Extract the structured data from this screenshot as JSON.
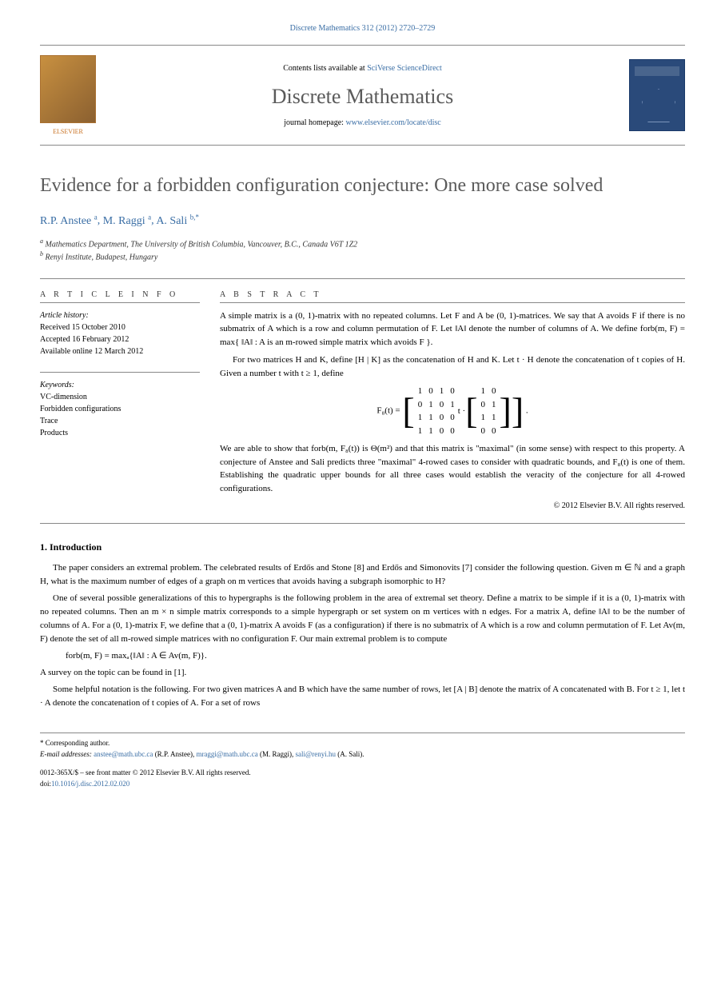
{
  "header": {
    "citation": "Discrete Mathematics 312 (2012) 2720–2729",
    "contents_prefix": "Contents lists available at ",
    "contents_link": "SciVerse ScienceDirect",
    "journal_name": "Discrete Mathematics",
    "homepage_prefix": "journal homepage: ",
    "homepage_link": "www.elsevier.com/locate/disc",
    "elsevier_label": "ELSEVIER"
  },
  "title": "Evidence for a forbidden configuration conjecture: One more case solved",
  "authors_html": "R.P. Anstee",
  "authors": [
    {
      "name": "R.P. Anstee",
      "sup": "a"
    },
    {
      "name": "M. Raggi",
      "sup": "a"
    },
    {
      "name": "A. Sali",
      "sup": "b,*"
    }
  ],
  "affiliations": [
    {
      "sup": "a",
      "text": "Mathematics Department, The University of British Columbia, Vancouver, B.C., Canada V6T 1Z2"
    },
    {
      "sup": "b",
      "text": "Renyi Institute, Budapest, Hungary"
    }
  ],
  "info": {
    "label": "A R T I C L E   I N F O",
    "history_label": "Article history:",
    "received": "Received 15 October 2010",
    "accepted": "Accepted 16 February 2012",
    "online": "Available online 12 March 2012",
    "keywords_label": "Keywords:",
    "keywords": [
      "VC-dimension",
      "Forbidden configurations",
      "Trace",
      "Products"
    ]
  },
  "abstract": {
    "label": "A B S T R A C T",
    "p1": "A simple matrix is a (0, 1)-matrix with no repeated columns. Let F and A be (0, 1)-matrices. We say that A avoids F if there is no submatrix of A which is a row and column permutation of F. Let ‖A‖ denote the number of columns of A. We define forb(m, F) = max{ ‖A‖ : A is an m-rowed simple matrix which avoids F }.",
    "p2_pre": "For two matrices H and K, define [H | K] as the concatenation of H and K. Let t · H denote the concatenation of t copies of H. Given a number t with t ≥ 1, define",
    "matrix_label": "F₈(t) =",
    "matrix1": [
      [
        "1",
        "0",
        "1",
        "0"
      ],
      [
        "0",
        "1",
        "0",
        "1"
      ],
      [
        "1",
        "1",
        "0",
        "0"
      ],
      [
        "1",
        "1",
        "0",
        "0"
      ]
    ],
    "matrix_mid": "t ·",
    "matrix2": [
      [
        "1",
        "0"
      ],
      [
        "0",
        "1"
      ],
      [
        "1",
        "1"
      ],
      [
        "0",
        "0"
      ]
    ],
    "matrix_end": ".",
    "p3": "We are able to show that forb(m, F₈(t)) is Θ(m²) and that this matrix is \"maximal\" (in some sense) with respect to this property. A conjecture of Anstee and Sali predicts three \"maximal\" 4-rowed cases to consider with quadratic bounds, and F₈(t) is one of them. Establishing the quadratic upper bounds for all three cases would establish the veracity of the conjecture for all 4-rowed configurations.",
    "copyright": "© 2012 Elsevier B.V. All rights reserved."
  },
  "intro": {
    "heading": "1. Introduction",
    "p1": "The paper considers an extremal problem. The celebrated results of Erdős and Stone [8] and Erdős and Simonovits [7] consider the following question. Given m ∈ ℕ and a graph H, what is the maximum number of edges of a graph on m vertices that avoids having a subgraph isomorphic to H?",
    "p2": "One of several possible generalizations of this to hypergraphs is the following problem in the area of extremal set theory. Define a matrix to be simple if it is a (0, 1)-matrix with no repeated columns. Then an m × n simple matrix corresponds to a simple hypergraph or set system on m vertices with n edges. For a matrix A, define ‖A‖ to be the number of columns of A. For a (0, 1)-matrix F, we define that a (0, 1)-matrix A avoids F (as a configuration) if there is no submatrix of A which is a row and column permutation of F. Let Av(m, F) denote the set of all m-rowed simple matrices with no configuration F. Our main extremal problem is to compute",
    "formula": "forb(m, F) = maxₐ{‖A‖ : A ∈ Av(m, F)}.",
    "p3": "A survey on the topic can be found in [1].",
    "p4": "Some helpful notation is the following. For two given matrices A and B which have the same number of rows, let [A | B] denote the matrix of A concatenated with B. For t ≥ 1, let t · A denote the concatenation of t copies of A. For a set of rows"
  },
  "footer": {
    "corr": "* Corresponding author.",
    "email_label": "E-mail addresses:",
    "emails": [
      {
        "addr": "anstee@math.ubc.ca",
        "who": "(R.P. Anstee)"
      },
      {
        "addr": "mraggi@math.ubc.ca",
        "who": "(M. Raggi)"
      },
      {
        "addr": "sali@renyi.hu",
        "who": "(A. Sali)"
      }
    ],
    "issn": "0012-365X/$ – see front matter © 2012 Elsevier B.V. All rights reserved.",
    "doi_label": "doi:",
    "doi": "10.1016/j.disc.2012.02.020"
  },
  "colors": {
    "link": "#3a6ea5",
    "heading": "#5a5a5a",
    "text": "#000000"
  }
}
